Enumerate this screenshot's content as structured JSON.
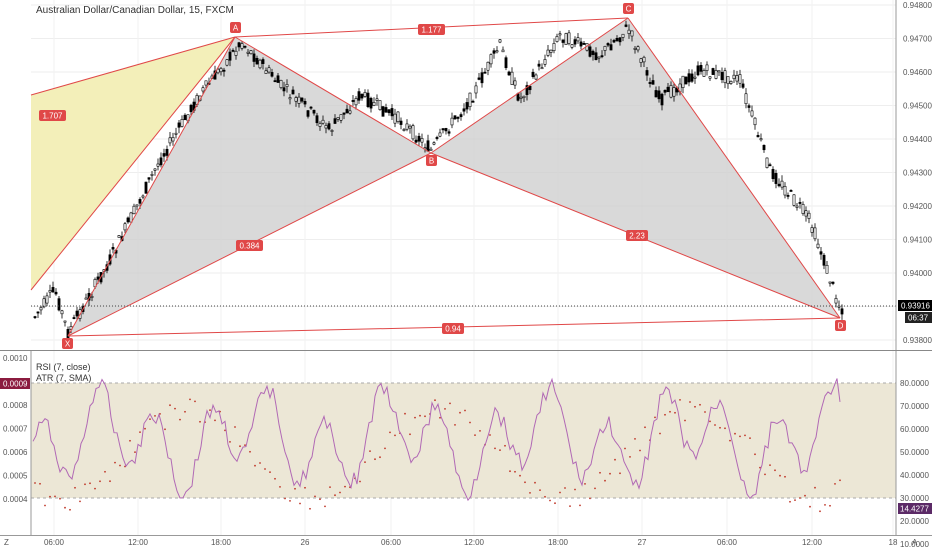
{
  "header": {
    "title": "Australian Dollar/Canadian Dollar, 15, FXCM"
  },
  "price_axis": {
    "ticks": [
      "0.94800",
      "0.94700",
      "0.94600",
      "0.94500",
      "0.94400",
      "0.94300",
      "0.94200",
      "0.94100",
      "0.94000",
      "0.93900",
      "0.93800"
    ],
    "last_price": "0.93916",
    "countdown": "06:37"
  },
  "time_axis": {
    "ticks": [
      "06:00",
      "12:00",
      "18:00",
      "26",
      "06:00",
      "12:00",
      "18:00",
      "27",
      "06:00",
      "12:00",
      "18"
    ],
    "corner_label": "Z",
    "right_label": "A"
  },
  "pattern": {
    "points": [
      "X",
      "A",
      "B",
      "C",
      "D"
    ],
    "ratios": {
      "xa_xc": "1.707",
      "ac": "1.177",
      "xb": "0.384",
      "bd": "2.23",
      "xd": "0.94"
    }
  },
  "indicators": {
    "rsi_label": "RSI (7, close)",
    "atr_label": "ATR (7, SMA)",
    "rsi_value": "14.4277",
    "atr_value": "0.0009",
    "left_ticks": [
      "0.0010",
      "0.0009",
      "0.0008",
      "0.0007",
      "0.0006",
      "0.0005",
      "0.0004"
    ],
    "right_ticks": [
      "80.0000",
      "70.0000",
      "60.0000",
      "50.0000",
      "40.0000",
      "30.0000",
      "20.0000",
      "10.0000"
    ]
  },
  "colors": {
    "bull": "#ffffff",
    "bear": "#000000",
    "pattern_line": "#e04848",
    "pattern_fill": "#cccccc",
    "extension_fill": "#f3efb9",
    "rsi_line": "#b169b5",
    "rsi_band": "#ece7d6",
    "atr_dots": "#c0392b"
  }
}
